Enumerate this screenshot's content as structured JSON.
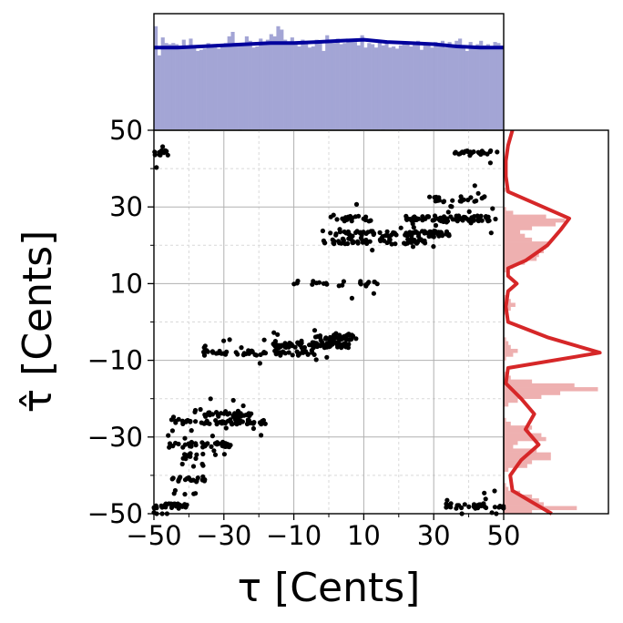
{
  "chart_data": [
    {
      "panel": "main-scatter",
      "type": "scatter",
      "xlabel": "τ [Cents]",
      "ylabel": "τ̂ [Cents]",
      "xlim": [
        -50,
        50
      ],
      "ylim": [
        -50,
        50
      ],
      "x_ticks": [
        "−50",
        "−30",
        "−10",
        "10",
        "30",
        "50"
      ],
      "y_ticks": [
        "−50",
        "−30",
        "−10",
        "10",
        "30",
        "50"
      ],
      "grid": true,
      "marker_color": "#000000",
      "clusters": [
        {
          "x_range": [
            -50,
            -40
          ],
          "y": -48,
          "n": 40
        },
        {
          "x_range": [
            -45,
            -35
          ],
          "y": -41,
          "n": 25
        },
        {
          "x_range": [
            -42,
            -32
          ],
          "y": -35,
          "n": 15
        },
        {
          "x_range": [
            -48,
            -28
          ],
          "y": -32,
          "n": 45
        },
        {
          "x_range": [
            -45,
            -18
          ],
          "y": -26,
          "n": 70
        },
        {
          "x_range": [
            -36,
            -22
          ],
          "y": -24,
          "n": 30
        },
        {
          "x_range": [
            -36,
            -4
          ],
          "y": -8,
          "n": 60
        },
        {
          "x_range": [
            -16,
            6
          ],
          "y": -6,
          "n": 90
        },
        {
          "x_range": [
            -4,
            8
          ],
          "y": -4,
          "n": 40
        },
        {
          "x_range": [
            -10,
            14
          ],
          "y": 10,
          "n": 25
        },
        {
          "x_range": [
            -2,
            28
          ],
          "y": 21,
          "n": 60
        },
        {
          "x_range": [
            2,
            35
          ],
          "y": 23,
          "n": 90
        },
        {
          "x_range": [
            0,
            14
          ],
          "y": 27,
          "n": 20
        },
        {
          "x_range": [
            20,
            48
          ],
          "y": 27,
          "n": 80
        },
        {
          "x_range": [
            28,
            45
          ],
          "y": 32,
          "n": 25
        },
        {
          "x_range": [
            36,
            50
          ],
          "y": 44,
          "n": 25
        },
        {
          "x_range": [
            33,
            50
          ],
          "y": -48,
          "n": 40
        },
        {
          "x_range": [
            -50,
            -46
          ],
          "y": 44,
          "n": 15
        }
      ]
    },
    {
      "panel": "top-marginal",
      "type": "bar",
      "axis": "x",
      "bin_width": 1,
      "bar_color": "#a3a5d5",
      "kde_color": "#00009c",
      "hist_counts": [
        92,
        66,
        82,
        77,
        76,
        77,
        76,
        72,
        80,
        74,
        81,
        74,
        70,
        71,
        72,
        77,
        75,
        73,
        72,
        74,
        77,
        83,
        87,
        77,
        75,
        76,
        83,
        79,
        73,
        74,
        81,
        76,
        80,
        85,
        83,
        92,
        89,
        80,
        78,
        82,
        76,
        74,
        80,
        78,
        73,
        74,
        80,
        79,
        70,
        84,
        80,
        77,
        81,
        76,
        77,
        81,
        79,
        78,
        75,
        84,
        73,
        77,
        76,
        73,
        78,
        75,
        79,
        73,
        74,
        72,
        75,
        76,
        77,
        74,
        76,
        79,
        71,
        75,
        77,
        73,
        78,
        76,
        79,
        73,
        78,
        73,
        79,
        81,
        75,
        70,
        78,
        72,
        76,
        79,
        75,
        76,
        72,
        78,
        77,
        75
      ],
      "kde": [
        73,
        73,
        74,
        75,
        76,
        77,
        77,
        78,
        79,
        80,
        78,
        77,
        76,
        74,
        73,
        73
      ]
    },
    {
      "panel": "right-marginal",
      "type": "bar",
      "axis": "y",
      "bin_width": 1,
      "bar_color": "#eeb0b0",
      "kde_color": "#d62728",
      "hist_counts": [
        12,
        31,
        17,
        15,
        12,
        7,
        2,
        1,
        0,
        0,
        0,
        2,
        10,
        12,
        20,
        20,
        14,
        4,
        6,
        18,
        16,
        11,
        12,
        3,
        1,
        0,
        0,
        0,
        2,
        6,
        16,
        24,
        40,
        30,
        12,
        3,
        1,
        0,
        0,
        0,
        1,
        4,
        6,
        3,
        2,
        1,
        0,
        0,
        0,
        0,
        0,
        0,
        1,
        3,
        5,
        3,
        1,
        0,
        0,
        0,
        0,
        0,
        0,
        1,
        4,
        9,
        14,
        15,
        17,
        18,
        19,
        12,
        9,
        7,
        12,
        22,
        26,
        18,
        4,
        1,
        0,
        0,
        0,
        0,
        1,
        0,
        0,
        0,
        0,
        0,
        0,
        0,
        0,
        0,
        0,
        0,
        0,
        0,
        0,
        0
      ],
      "kde": [
        [
          -50,
          11
        ],
        [
          -48,
          8
        ],
        [
          -44,
          2
        ],
        [
          -40,
          1.5
        ],
        [
          -36,
          4
        ],
        [
          -32,
          8
        ],
        [
          -28,
          5
        ],
        [
          -24,
          7
        ],
        [
          -20,
          4
        ],
        [
          -16,
          0.5
        ],
        [
          -12,
          1
        ],
        [
          -8,
          22
        ],
        [
          -4,
          10
        ],
        [
          0,
          1
        ],
        [
          4,
          0.5
        ],
        [
          8,
          1
        ],
        [
          10,
          3
        ],
        [
          12,
          1
        ],
        [
          14,
          1
        ],
        [
          16,
          5
        ],
        [
          20,
          10
        ],
        [
          24,
          13
        ],
        [
          27,
          15
        ],
        [
          30,
          9
        ],
        [
          34,
          1
        ],
        [
          38,
          0.5
        ],
        [
          42,
          0.5
        ],
        [
          46,
          1
        ],
        [
          50,
          2
        ]
      ]
    }
  ]
}
